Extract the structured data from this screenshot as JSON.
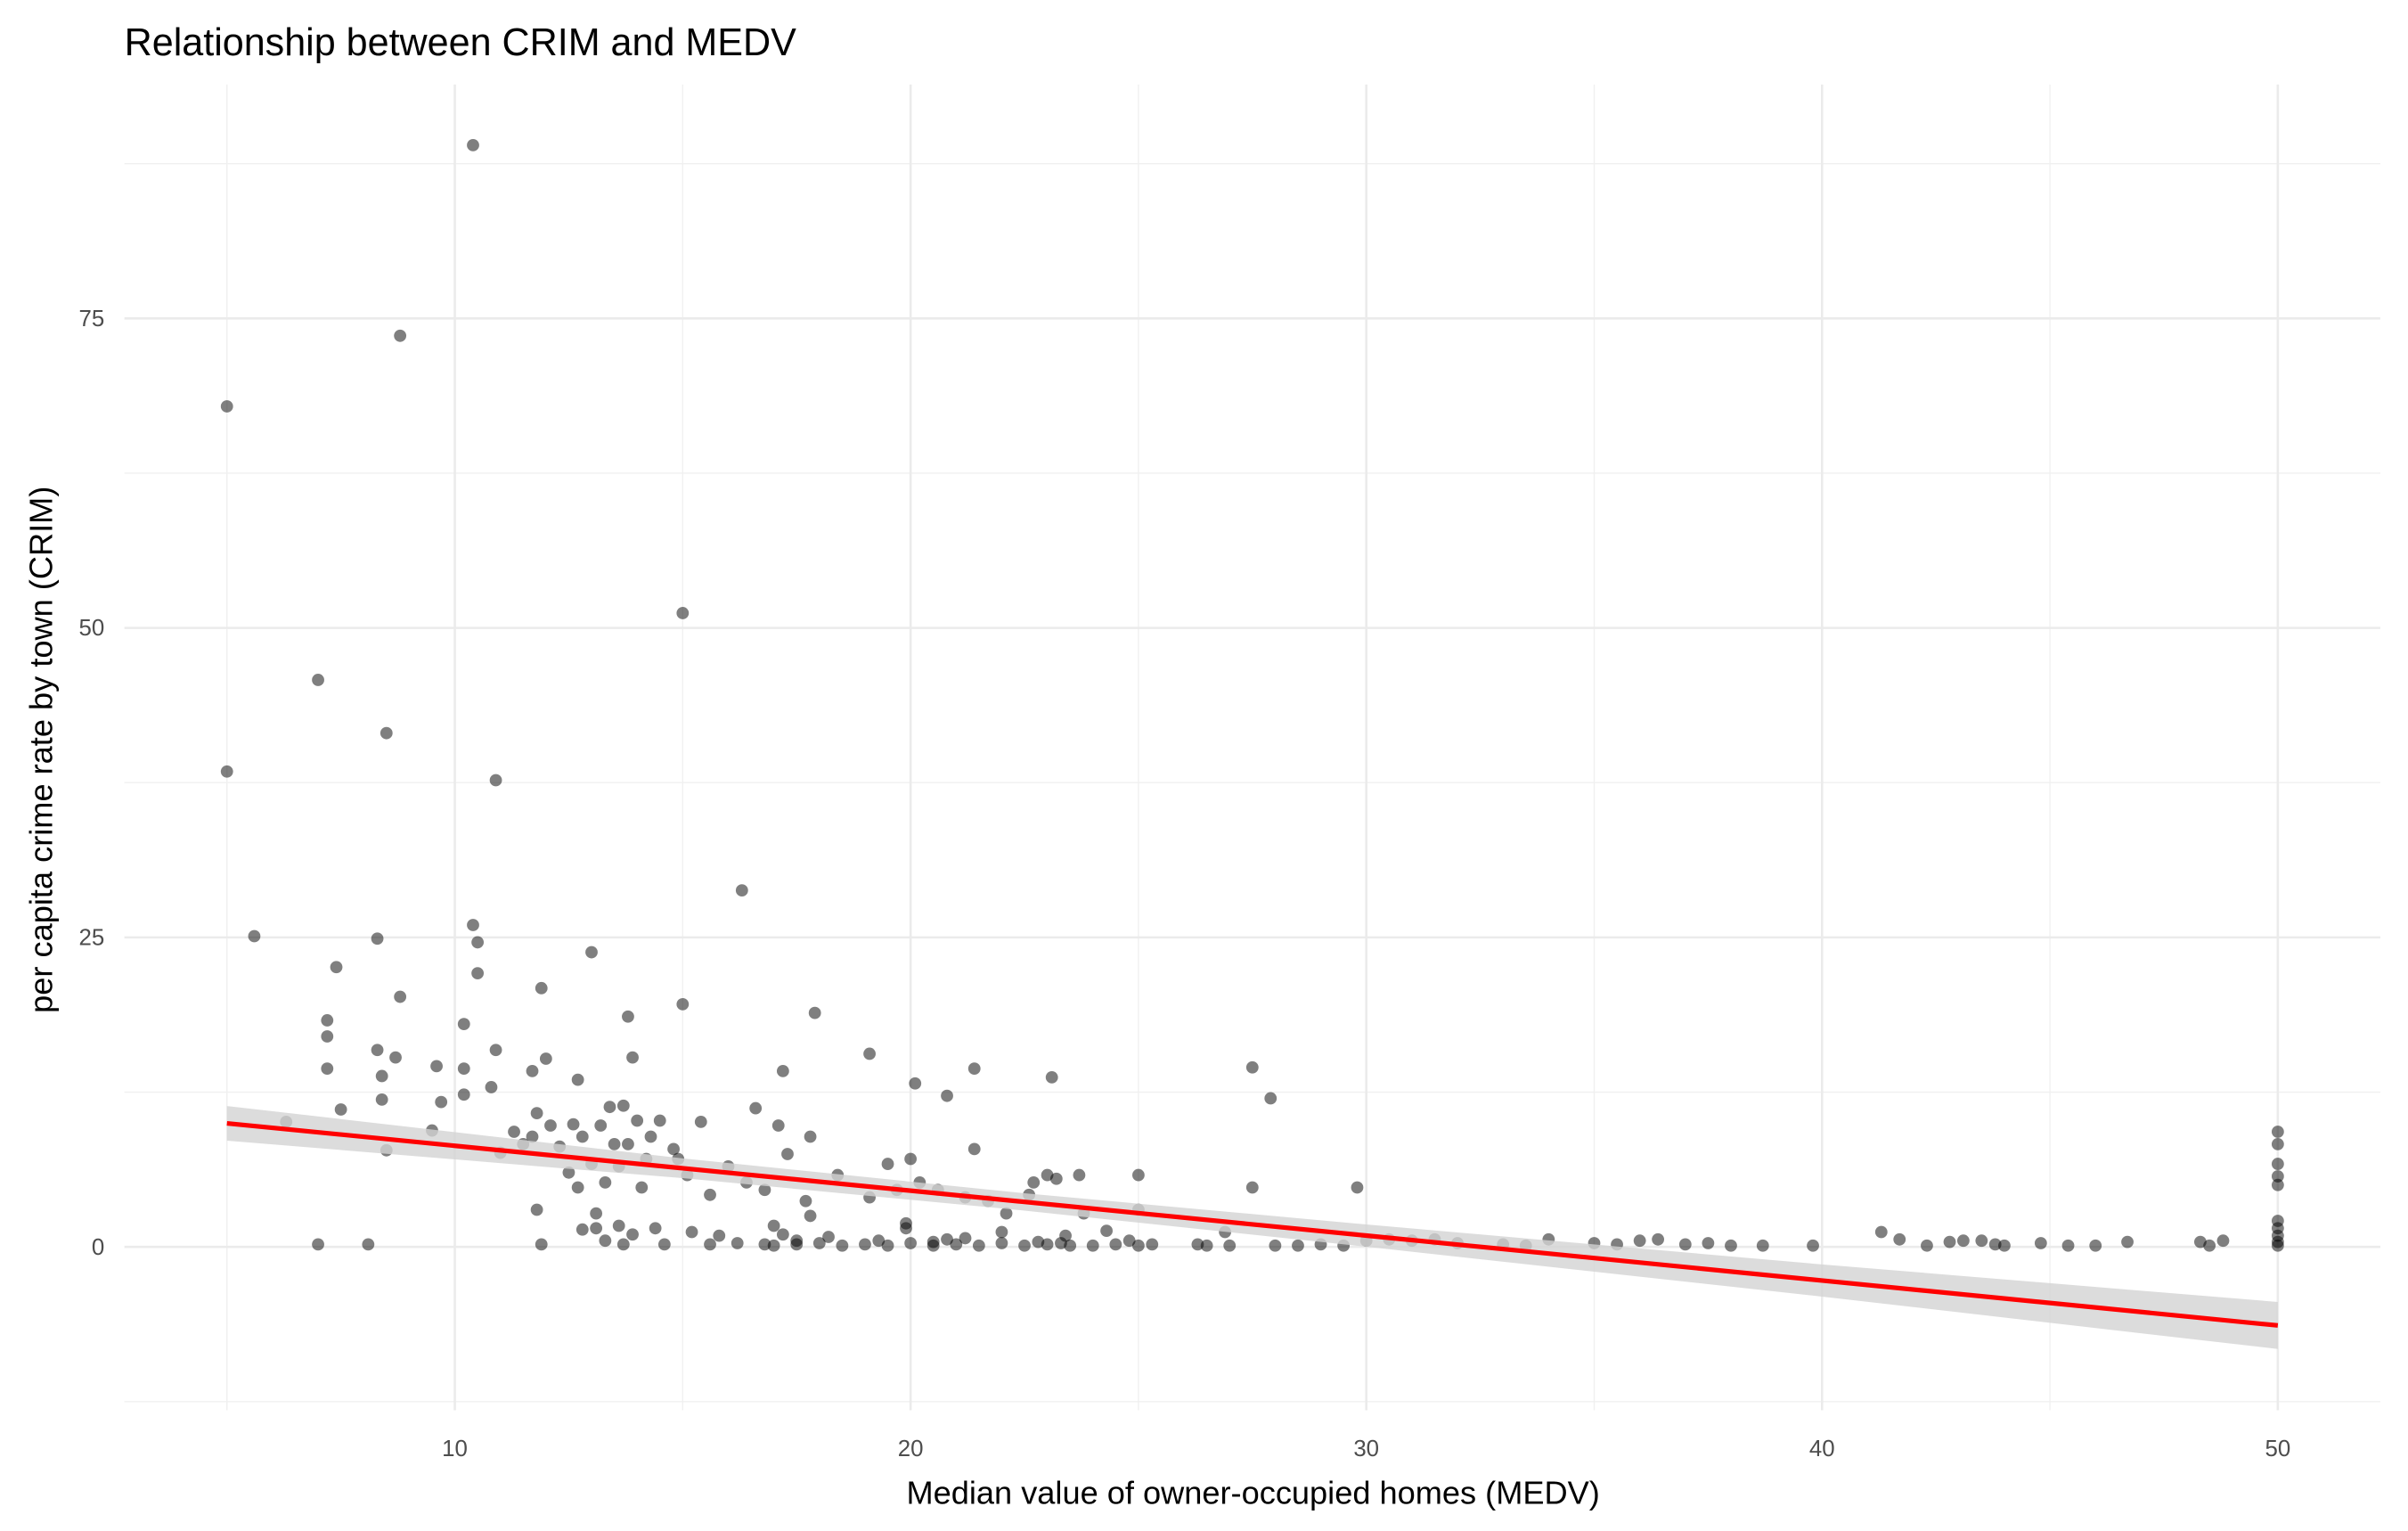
{
  "chart_data": {
    "type": "scatter",
    "title": "Relationship between CRIM and MEDV",
    "x_label": "Median value of owner-occupied homes (MEDV)",
    "y_label": "per capita crime rate by town (CRIM)",
    "xlim": [
      2.75,
      52.25
    ],
    "ylim": [
      -13.2,
      93.9
    ],
    "xticks": [
      10,
      20,
      30,
      40,
      50
    ],
    "yticks": [
      0,
      25,
      50,
      75
    ],
    "xminorticks": [
      5,
      15,
      25,
      35,
      45
    ],
    "yminorticks": [
      -12.5,
      12.5,
      37.5,
      62.5,
      87.5
    ],
    "grid": true,
    "point_color": "#000000",
    "point_alpha": 0.5,
    "x": [
      5,
      5,
      5.6,
      6.3,
      7.0,
      7.0,
      7.2,
      7.2,
      7.2,
      7.4,
      7.5,
      8.1,
      8.3,
      8.3,
      8.4,
      8.4,
      8.5,
      8.5,
      8.7,
      8.8,
      8.8,
      9.5,
      9.6,
      9.7,
      10.2,
      10.2,
      10.2,
      10.4,
      10.4,
      10.5,
      10.5,
      10.8,
      10.9,
      10.9,
      11.0,
      11.3,
      11.5,
      11.7,
      11.7,
      11.8,
      11.8,
      11.9,
      11.9,
      12.0,
      12.1,
      12.3,
      12.5,
      12.6,
      12.7,
      12.7,
      12.8,
      12.8,
      13.0,
      13.0,
      13.1,
      13.1,
      13.2,
      13.3,
      13.3,
      13.4,
      13.5,
      13.6,
      13.6,
      13.7,
      13.7,
      13.8,
      13.8,
      13.9,
      13.9,
      14.0,
      14.1,
      14.2,
      14.3,
      14.4,
      14.5,
      14.6,
      14.8,
      14.9,
      15.0,
      15.0,
      15.1,
      15.2,
      15.4,
      15.6,
      15.6,
      15.8,
      16.0,
      16.3,
      16.4,
      16.6,
      16.8,
      17.0,
      17.1,
      17.2,
      17.3,
      17.5,
      17.7,
      17.8,
      17.8,
      17.9,
      18.4,
      19.1,
      19.1,
      19.5,
      19.7,
      19.9,
      20.0,
      20.1,
      20.2,
      20.6,
      20.8,
      21.2,
      21.4,
      21.4,
      21.7,
      22.1,
      22.6,
      22.7,
      23.0,
      23.1,
      23.2,
      23.7,
      23.8,
      25.0,
      25.0,
      27.5,
      27.5,
      27.9,
      29.8,
      50,
      50,
      50,
      50,
      50,
      50,
      50,
      50,
      50,
      50,
      17,
      17.5,
      18,
      18.5,
      19,
      19.5,
      20,
      20.5,
      21,
      21.5,
      22,
      22.5,
      23,
      23.5,
      24,
      24.5,
      25,
      26.5,
      27,
      28,
      28.5,
      29,
      29.5,
      30,
      30.5,
      31,
      31.5,
      32,
      33,
      33.5,
      34,
      35,
      35.5,
      36,
      36.4,
      37,
      37.5,
      38,
      38.7,
      39.8,
      41.3,
      41.7,
      42.3,
      42.8,
      43.1,
      43.5,
      43.8,
      44,
      44.8,
      45.4,
      46,
      46.7,
      48.3,
      48.5,
      48.8,
      19.3,
      20.8,
      22.8,
      24.8,
      21.2,
      23.3,
      17.2,
      18.2,
      16.2,
      16.8,
      19.9,
      22,
      24.3,
      26.9,
      23.4,
      20.5,
      25.3,
      26.3
    ],
    "values": [
      67.9,
      38.4,
      25.1,
      10.1,
      45.8,
      0.2,
      18.3,
      17.0,
      14.4,
      22.6,
      11.1,
      0.2,
      24.9,
      15.9,
      13.8,
      11.9,
      7.8,
      41.5,
      15.3,
      73.6,
      20.2,
      9.4,
      14.6,
      11.7,
      18.0,
      14.4,
      12.3,
      89.0,
      26.0,
      24.6,
      22.1,
      12.9,
      37.7,
      15.9,
      7.6,
      9.3,
      8.3,
      8.9,
      14.2,
      10.8,
      3.0,
      20.9,
      0.2,
      15.2,
      9.8,
      8.1,
      6.0,
      9.9,
      13.5,
      4.8,
      8.9,
      1.4,
      23.8,
      6.7,
      2.7,
      1.5,
      9.8,
      5.2,
      0.5,
      11.3,
      8.3,
      6.5,
      1.7,
      11.4,
      0.2,
      18.6,
      8.3,
      15.3,
      1.0,
      10.2,
      4.8,
      7.1,
      8.9,
      1.5,
      10.2,
      0.2,
      7.9,
      7.1,
      51.2,
      19.6,
      5.8,
      1.2,
      10.1,
      4.2,
      0.2,
      0.9,
      6.5,
      28.8,
      5.2,
      11.2,
      4.6,
      1.7,
      9.8,
      14.2,
      7.5,
      0.5,
      3.7,
      8.9,
      2.5,
      18.9,
      5.8,
      4.0,
      15.6,
      6.7,
      4.6,
      1.5,
      7.1,
      13.2,
      5.2,
      4.6,
      12.2,
      4.0,
      7.9,
      14.4,
      3.7,
      2.7,
      4.2,
      5.2,
      5.8,
      13.7,
      5.5,
      5.8,
      2.7,
      5.8,
      3.0,
      14.5,
      4.8,
      12.0,
      4.8,
      9.3,
      8.3,
      6.7,
      5.7,
      5.0,
      2.1,
      1.5,
      0.9,
      0.4,
      0.1,
      0.1,
      0.2,
      0.3,
      0.1,
      0.2,
      0.1,
      0.3,
      0.1,
      0.2,
      0.1,
      0.3,
      0.1,
      0.2,
      0.1,
      0.1,
      0.2,
      0.1,
      0.1,
      0.1,
      0.1,
      0.1,
      0.2,
      0.1,
      0.5,
      0.6,
      0.5,
      0.6,
      0.3,
      0.2,
      0.1,
      0.6,
      0.3,
      0.2,
      0.5,
      0.6,
      0.2,
      0.3,
      0.1,
      0.1,
      0.1,
      1.2,
      0.6,
      0.1,
      0.4,
      0.5,
      0.5,
      0.2,
      0.1,
      0.3,
      0.1,
      0.1,
      0.4,
      0.4,
      0.1,
      0.5,
      0.5,
      0.6,
      0.4,
      0.5,
      0.7,
      0.3,
      1.0,
      0.8,
      0.3,
      0.2,
      1.9,
      1.2,
      1.3,
      1.2,
      0.9,
      0.4,
      0.2,
      0.2
    ],
    "fit": {
      "color": "#ff0000",
      "band_color": "#d3d3d3",
      "x": [
        5,
        15,
        22.5,
        30,
        40,
        50
      ],
      "y": [
        9.98,
        6.35,
        3.63,
        0.91,
        -2.72,
        -6.35
      ],
      "lower": [
        8.58,
        5.55,
        2.93,
        0.01,
        -4.02,
        -8.25
      ],
      "upper": [
        11.38,
        7.15,
        4.33,
        1.81,
        -1.42,
        -4.45
      ]
    }
  }
}
